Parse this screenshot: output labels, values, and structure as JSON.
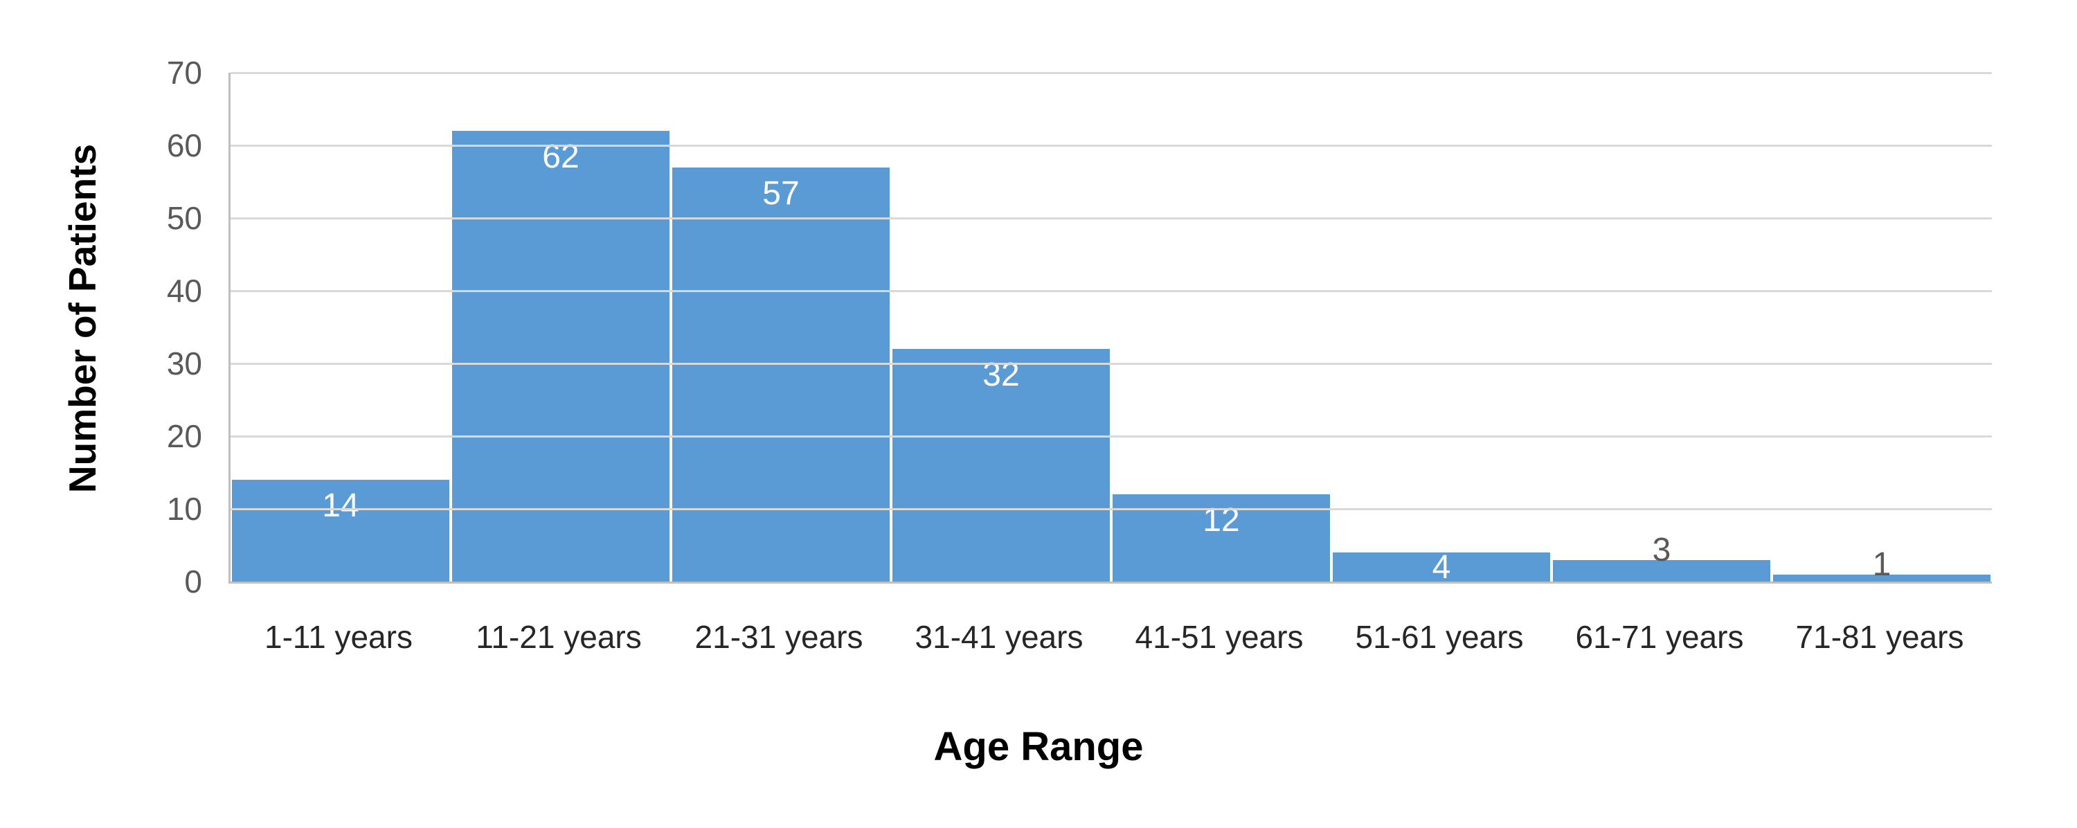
{
  "chart_data": {
    "type": "bar",
    "categories": [
      "1-11 years",
      "11-21 years",
      "21-31 years",
      "31-41 years",
      "41-51 years",
      "51-61 years",
      "61-71 years",
      "71-81 years"
    ],
    "values": [
      14,
      62,
      57,
      32,
      12,
      4,
      3,
      1
    ],
    "label_placement": [
      "inside",
      "inside",
      "inside",
      "inside",
      "inside",
      "inside",
      "outside",
      "outside"
    ],
    "xlabel": "Age Range",
    "ylabel": "Number of Patients",
    "ylim": [
      0,
      70
    ],
    "yticks": [
      0,
      10,
      20,
      30,
      40,
      50,
      60,
      70
    ],
    "grid": "horizontal",
    "legend": "none",
    "colors": {
      "bar": "#5B9BD5",
      "gridline": "#D9D9D9",
      "axis_line": "#BFBFBF",
      "tick_label": "#595959",
      "category_label": "#262626",
      "value_label_inside": "#FFFFFF",
      "value_label_outside": "#595959",
      "axis_title": "#000000"
    }
  }
}
